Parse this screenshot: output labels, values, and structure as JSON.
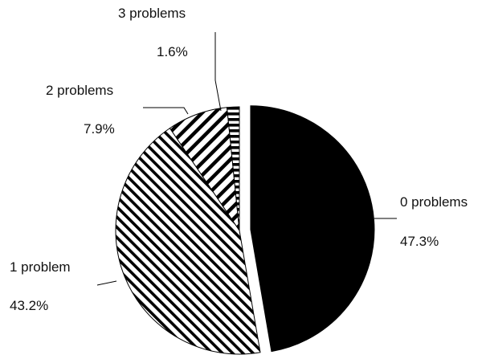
{
  "chart_data": {
    "type": "pie",
    "title": "",
    "start_angle_deg": 0,
    "direction": "clockwise",
    "exploded_slice": "0 problems",
    "slices": [
      {
        "label": "0 problems",
        "value_label": "47.3%",
        "value": 47.3,
        "color": "#000000",
        "pattern": "solid"
      },
      {
        "label": "1 problem",
        "value_label": "43.2%",
        "value": 43.2,
        "color": "#000000",
        "pattern": "diagonal-dense"
      },
      {
        "label": "2 problems",
        "value_label": "7.9%",
        "value": 7.9,
        "color": "#000000",
        "pattern": "diagonal-wide"
      },
      {
        "label": "3 problems",
        "value_label": "1.6%",
        "value": 1.6,
        "color": "#000000",
        "pattern": "horizontal"
      }
    ]
  }
}
